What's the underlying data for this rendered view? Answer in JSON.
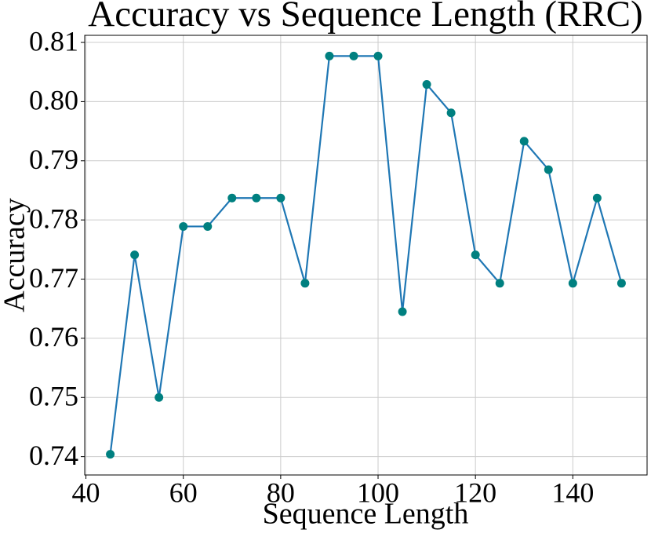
{
  "chart_data": {
    "type": "line",
    "title": "Accuracy vs Sequence Length (RRC)",
    "x_label": "Sequence Length",
    "y_label": "Accuracy",
    "x": [
      45,
      50,
      55,
      60,
      65,
      70,
      75,
      80,
      85,
      90,
      95,
      100,
      105,
      110,
      115,
      120,
      125,
      130,
      135,
      140,
      145,
      150
    ],
    "values": [
      0.7404,
      0.7741,
      0.75,
      0.7789,
      0.7789,
      0.7837,
      0.7837,
      0.7837,
      0.7693,
      0.8077,
      0.8077,
      0.8077,
      0.7645,
      0.8029,
      0.7981,
      0.7741,
      0.7693,
      0.7933,
      0.7885,
      0.7693,
      0.7837,
      0.7693
    ],
    "color": "#1f77b4",
    "marker_color": "#008080",
    "xlim": [
      39.75,
      155.25
    ],
    "xticks": [
      40,
      60,
      80,
      100,
      120,
      140
    ],
    "ylim": [
      0.7369,
      0.8112
    ],
    "yticks": [
      0.74,
      0.75,
      0.76,
      0.77,
      0.78,
      0.79,
      {
        "value": 0.8,
        "label": "0.80"
      },
      0.81
    ],
    "grid": true
  }
}
